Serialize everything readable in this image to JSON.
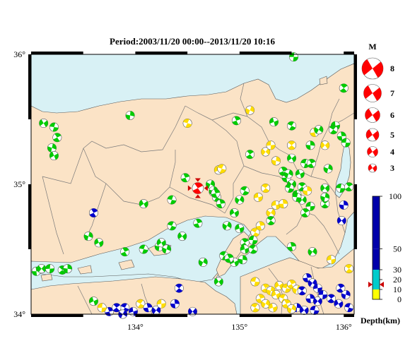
{
  "title": "Period:2003/11/20 00:00--2013/11/20 10:16",
  "map": {
    "lon_range": [
      133.0,
      136.1
    ],
    "lat_range": [
      34.0,
      36.0
    ],
    "lon_ticks": [
      {
        "value": 134,
        "label": "134°"
      },
      {
        "value": 135,
        "label": "135°"
      },
      {
        "value": 136,
        "label": "136°"
      }
    ],
    "lat_ticks": [
      {
        "value": 36,
        "label": "36°"
      },
      {
        "value": 35,
        "label": "35°"
      },
      {
        "value": 34,
        "label": "34°"
      }
    ],
    "colors": {
      "land": "#fbe3c6",
      "sea": "#d8f1f5",
      "border": "#7a7a7a",
      "frame": "#000000"
    }
  },
  "magnitude_legend": {
    "title": "M",
    "items": [
      {
        "value": "8",
        "label": "8"
      },
      {
        "value": "7",
        "label": "7"
      },
      {
        "value": "6",
        "label": "6"
      },
      {
        "value": "5",
        "label": "5"
      },
      {
        "value": "4",
        "label": "4"
      },
      {
        "value": "3",
        "label": "3"
      }
    ],
    "color": "#ff0000"
  },
  "depth_scale": {
    "label": "Depth(km)",
    "ticks": [
      "100",
      "50",
      "30",
      "20",
      "10",
      "0"
    ],
    "tick_values": [
      100,
      50,
      30,
      20,
      10,
      0
    ],
    "colors": {
      "shallow": "#ffff00",
      "mid": "#00cccc",
      "deep": "#0000aa"
    },
    "marker_depth": 15
  },
  "main_event": {
    "lon": 134.6,
    "lat": 34.97,
    "depth": 15,
    "color": "#ff0000"
  },
  "events": [
    {
      "lon": 135.52,
      "lat": 35.98,
      "c": "g"
    },
    {
      "lon": 136.0,
      "lat": 35.74,
      "c": "g"
    },
    {
      "lon": 133.95,
      "lat": 35.53,
      "c": "g"
    },
    {
      "lon": 133.12,
      "lat": 35.47,
      "c": "g"
    },
    {
      "lon": 133.22,
      "lat": 35.44,
      "c": "g"
    },
    {
      "lon": 133.25,
      "lat": 35.36,
      "c": "g"
    },
    {
      "lon": 133.2,
      "lat": 35.28,
      "c": "g"
    },
    {
      "lon": 133.22,
      "lat": 35.22,
      "c": "g"
    },
    {
      "lon": 134.5,
      "lat": 35.47,
      "c": "y"
    },
    {
      "lon": 134.97,
      "lat": 35.49,
      "c": "g"
    },
    {
      "lon": 135.1,
      "lat": 35.57,
      "c": "y"
    },
    {
      "lon": 135.33,
      "lat": 35.48,
      "c": "g"
    },
    {
      "lon": 135.5,
      "lat": 35.45,
      "c": "g"
    },
    {
      "lon": 135.72,
      "lat": 35.4,
      "c": "y"
    },
    {
      "lon": 135.76,
      "lat": 35.42,
      "c": "g"
    },
    {
      "lon": 135.92,
      "lat": 35.45,
      "c": "g"
    },
    {
      "lon": 135.9,
      "lat": 35.42,
      "c": "g"
    },
    {
      "lon": 135.98,
      "lat": 35.37,
      "c": "g"
    },
    {
      "lon": 135.25,
      "lat": 35.25,
      "c": "y"
    },
    {
      "lon": 135.3,
      "lat": 35.3,
      "c": "y"
    },
    {
      "lon": 135.5,
      "lat": 35.3,
      "c": "y"
    },
    {
      "lon": 135.68,
      "lat": 35.3,
      "c": "g"
    },
    {
      "lon": 135.82,
      "lat": 35.3,
      "c": "y"
    },
    {
      "lon": 136.02,
      "lat": 35.32,
      "c": "g"
    },
    {
      "lon": 135.1,
      "lat": 35.23,
      "c": "g"
    },
    {
      "lon": 135.35,
      "lat": 35.18,
      "c": "y"
    },
    {
      "lon": 135.5,
      "lat": 35.2,
      "c": "g"
    },
    {
      "lon": 135.63,
      "lat": 35.16,
      "c": "g"
    },
    {
      "lon": 135.69,
      "lat": 35.16,
      "c": "g"
    },
    {
      "lon": 135.85,
      "lat": 35.12,
      "c": "g"
    },
    {
      "lon": 134.8,
      "lat": 35.11,
      "c": "y"
    },
    {
      "lon": 134.83,
      "lat": 35.12,
      "c": "y"
    },
    {
      "lon": 134.48,
      "lat": 35.05,
      "c": "g"
    },
    {
      "lon": 134.72,
      "lat": 35.0,
      "c": "g"
    },
    {
      "lon": 134.75,
      "lat": 34.94,
      "c": "g"
    },
    {
      "lon": 134.78,
      "lat": 34.9,
      "c": "g"
    },
    {
      "lon": 134.82,
      "lat": 34.85,
      "c": "g"
    },
    {
      "lon": 135.0,
      "lat": 34.88,
      "c": "g"
    },
    {
      "lon": 135.18,
      "lat": 34.9,
      "c": "y"
    },
    {
      "lon": 135.25,
      "lat": 34.97,
      "c": "y"
    },
    {
      "lon": 135.45,
      "lat": 35.05,
      "c": "g"
    },
    {
      "lon": 135.5,
      "lat": 35.0,
      "c": "g"
    },
    {
      "lon": 135.55,
      "lat": 34.92,
      "c": "g"
    },
    {
      "lon": 135.6,
      "lat": 34.98,
      "c": "g"
    },
    {
      "lon": 135.65,
      "lat": 34.95,
      "c": "y"
    },
    {
      "lon": 135.82,
      "lat": 34.97,
      "c": "g"
    },
    {
      "lon": 135.97,
      "lat": 34.97,
      "c": "g"
    },
    {
      "lon": 136.05,
      "lat": 34.98,
      "c": "g"
    },
    {
      "lon": 134.75,
      "lat": 34.95,
      "c": "g"
    },
    {
      "lon": 134.08,
      "lat": 34.85,
      "c": "g"
    },
    {
      "lon": 134.35,
      "lat": 34.88,
      "c": "g"
    },
    {
      "lon": 133.6,
      "lat": 34.78,
      "c": "b"
    },
    {
      "lon": 133.55,
      "lat": 34.6,
      "c": "g"
    },
    {
      "lon": 133.65,
      "lat": 34.55,
      "c": "g"
    },
    {
      "lon": 134.35,
      "lat": 34.68,
      "c": "g"
    },
    {
      "lon": 134.6,
      "lat": 34.7,
      "c": "g"
    },
    {
      "lon": 134.88,
      "lat": 34.68,
      "c": "g"
    },
    {
      "lon": 135.0,
      "lat": 34.66,
      "c": "g"
    },
    {
      "lon": 135.15,
      "lat": 34.63,
      "c": "y"
    },
    {
      "lon": 135.2,
      "lat": 34.68,
      "c": "y"
    },
    {
      "lon": 135.3,
      "lat": 34.78,
      "c": "y"
    },
    {
      "lon": 135.35,
      "lat": 34.84,
      "c": "y"
    },
    {
      "lon": 135.3,
      "lat": 34.72,
      "c": "g"
    },
    {
      "lon": 135.42,
      "lat": 34.85,
      "c": "y"
    },
    {
      "lon": 135.6,
      "lat": 34.88,
      "c": "g"
    },
    {
      "lon": 135.68,
      "lat": 34.83,
      "c": "g"
    },
    {
      "lon": 135.82,
      "lat": 34.85,
      "c": "g"
    },
    {
      "lon": 136.0,
      "lat": 34.84,
      "c": "b"
    },
    {
      "lon": 135.98,
      "lat": 34.72,
      "c": "b"
    },
    {
      "lon": 135.13,
      "lat": 34.57,
      "c": "g"
    },
    {
      "lon": 135.05,
      "lat": 34.55,
      "c": "g"
    },
    {
      "lon": 134.23,
      "lat": 34.52,
      "c": "g"
    },
    {
      "lon": 134.25,
      "lat": 34.55,
      "c": "g"
    },
    {
      "lon": 134.08,
      "lat": 34.5,
      "c": "g"
    },
    {
      "lon": 133.9,
      "lat": 34.48,
      "c": "g"
    },
    {
      "lon": 134.3,
      "lat": 34.5,
      "c": "g"
    },
    {
      "lon": 134.95,
      "lat": 34.4,
      "c": "g"
    },
    {
      "lon": 134.85,
      "lat": 34.45,
      "c": "g"
    },
    {
      "lon": 134.9,
      "lat": 34.43,
      "c": "g"
    },
    {
      "lon": 134.65,
      "lat": 34.4,
      "c": "g"
    },
    {
      "lon": 135.05,
      "lat": 34.5,
      "c": "g"
    },
    {
      "lon": 135.13,
      "lat": 34.5,
      "c": "g"
    },
    {
      "lon": 135.5,
      "lat": 34.52,
      "c": "g"
    },
    {
      "lon": 135.7,
      "lat": 34.48,
      "c": "g"
    },
    {
      "lon": 135.88,
      "lat": 34.42,
      "c": "y"
    },
    {
      "lon": 136.05,
      "lat": 34.35,
      "c": "y"
    },
    {
      "lon": 133.05,
      "lat": 34.33,
      "c": "g"
    },
    {
      "lon": 133.1,
      "lat": 34.35,
      "c": "g"
    },
    {
      "lon": 133.18,
      "lat": 34.35,
      "c": "g"
    },
    {
      "lon": 133.3,
      "lat": 34.34,
      "c": "g"
    },
    {
      "lon": 133.35,
      "lat": 34.35,
      "c": "g"
    },
    {
      "lon": 134.8,
      "lat": 34.25,
      "c": "g"
    },
    {
      "lon": 135.15,
      "lat": 34.25,
      "c": "y"
    },
    {
      "lon": 135.25,
      "lat": 34.2,
      "c": "y"
    },
    {
      "lon": 135.3,
      "lat": 34.18,
      "c": "y"
    },
    {
      "lon": 135.38,
      "lat": 34.22,
      "c": "y"
    },
    {
      "lon": 135.45,
      "lat": 34.2,
      "c": "y"
    },
    {
      "lon": 135.5,
      "lat": 34.23,
      "c": "y"
    },
    {
      "lon": 135.55,
      "lat": 34.19,
      "c": "y"
    },
    {
      "lon": 135.35,
      "lat": 34.15,
      "c": "y"
    },
    {
      "lon": 135.42,
      "lat": 34.12,
      "c": "y"
    },
    {
      "lon": 135.2,
      "lat": 34.12,
      "c": "y"
    },
    {
      "lon": 135.25,
      "lat": 34.08,
      "c": "y"
    },
    {
      "lon": 135.32,
      "lat": 34.05,
      "c": "y"
    },
    {
      "lon": 135.15,
      "lat": 34.05,
      "c": "y"
    },
    {
      "lon": 135.65,
      "lat": 34.28,
      "c": "b"
    },
    {
      "lon": 135.7,
      "lat": 34.24,
      "c": "b"
    },
    {
      "lon": 135.75,
      "lat": 34.2,
      "c": "b"
    },
    {
      "lon": 135.6,
      "lat": 34.18,
      "c": "b"
    },
    {
      "lon": 135.68,
      "lat": 34.12,
      "c": "b"
    },
    {
      "lon": 135.75,
      "lat": 34.1,
      "c": "b"
    },
    {
      "lon": 135.8,
      "lat": 34.15,
      "c": "b"
    },
    {
      "lon": 135.88,
      "lat": 34.12,
      "c": "b"
    },
    {
      "lon": 135.55,
      "lat": 34.05,
      "c": "b"
    },
    {
      "lon": 135.62,
      "lat": 34.03,
      "c": "b"
    },
    {
      "lon": 135.72,
      "lat": 34.03,
      "c": "b"
    },
    {
      "lon": 135.97,
      "lat": 34.2,
      "c": "b"
    },
    {
      "lon": 136.02,
      "lat": 34.15,
      "c": "b"
    },
    {
      "lon": 135.95,
      "lat": 34.08,
      "c": "b"
    },
    {
      "lon": 136.05,
      "lat": 34.05,
      "c": "b"
    },
    {
      "lon": 135.45,
      "lat": 34.08,
      "c": "y"
    },
    {
      "lon": 135.5,
      "lat": 34.04,
      "c": "y"
    },
    {
      "lon": 133.6,
      "lat": 34.1,
      "c": "g"
    },
    {
      "lon": 133.9,
      "lat": 34.05,
      "c": "b"
    },
    {
      "lon": 133.75,
      "lat": 34.02,
      "c": "b"
    },
    {
      "lon": 133.88,
      "lat": 34.0,
      "c": "b"
    },
    {
      "lon": 133.98,
      "lat": 34.02,
      "c": "b"
    },
    {
      "lon": 134.05,
      "lat": 34.08,
      "c": "y"
    },
    {
      "lon": 134.12,
      "lat": 34.05,
      "c": "b"
    },
    {
      "lon": 134.2,
      "lat": 34.03,
      "c": "b"
    },
    {
      "lon": 134.25,
      "lat": 34.08,
      "c": "y"
    },
    {
      "lon": 134.42,
      "lat": 34.2,
      "c": "b"
    },
    {
      "lon": 134.38,
      "lat": 34.08,
      "c": "b"
    },
    {
      "lon": 134.55,
      "lat": 34.02,
      "c": "b"
    },
    {
      "lon": 133.68,
      "lat": 34.05,
      "c": "y"
    },
    {
      "lon": 133.82,
      "lat": 34.05,
      "c": "b"
    },
    {
      "lon": 135.03,
      "lat": 34.42,
      "c": "g"
    },
    {
      "lon": 134.45,
      "lat": 34.6,
      "c": "g"
    },
    {
      "lon": 135.55,
      "lat": 34.9,
      "c": "g"
    },
    {
      "lon": 135.63,
      "lat": 34.78,
      "c": "g"
    },
    {
      "lon": 135.82,
      "lat": 34.9,
      "c": "g"
    },
    {
      "lon": 134.95,
      "lat": 34.78,
      "c": "g"
    },
    {
      "lon": 135.48,
      "lat": 34.97,
      "c": "g"
    },
    {
      "lon": 135.42,
      "lat": 35.1,
      "c": "g"
    },
    {
      "lon": 135.47,
      "lat": 35.08,
      "c": "g"
    },
    {
      "lon": 135.58,
      "lat": 35.08,
      "c": "g"
    },
    {
      "lon": 135.05,
      "lat": 34.95,
      "c": "g"
    },
    {
      "lon": 134.77,
      "lat": 34.93,
      "c": "g"
    }
  ]
}
